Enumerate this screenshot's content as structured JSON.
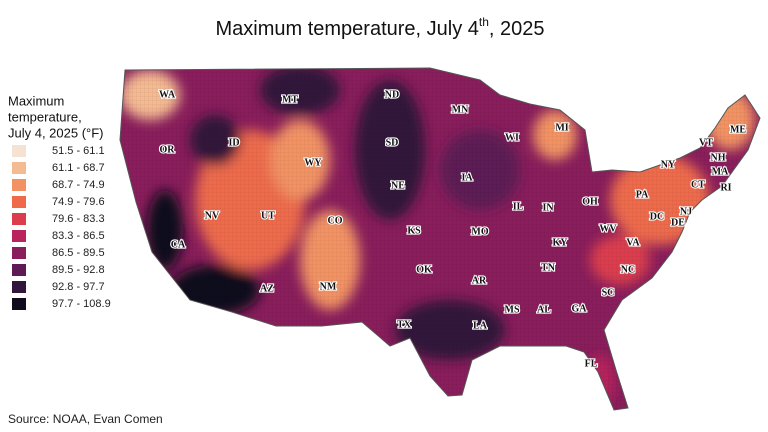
{
  "title": {
    "main": "Maximum temperature, July 4",
    "sup": "th",
    "rest": ", 2025"
  },
  "legend": {
    "title": [
      "Maximum",
      "temperature,",
      "July 4, 2025 (°F)"
    ],
    "items": [
      {
        "label": "51.5 - 61.1",
        "color": "#f6e2d2"
      },
      {
        "label": "61.1 - 68.7",
        "color": "#f4ba92"
      },
      {
        "label": "68.7 - 74.9",
        "color": "#f29263"
      },
      {
        "label": "74.9 - 79.6",
        "color": "#ee6a4b"
      },
      {
        "label": "79.6 - 83.3",
        "color": "#dc3d4d"
      },
      {
        "label": "83.3 - 86.5",
        "color": "#b8245b"
      },
      {
        "label": "86.5 - 89.5",
        "color": "#8a1d5c"
      },
      {
        "label": "89.5 - 92.8",
        "color": "#5d1a55"
      },
      {
        "label": "92.8 - 97.7",
        "color": "#33163b"
      },
      {
        "label": "97.7 - 108.9",
        "color": "#110c1d"
      }
    ]
  },
  "states": [
    "WA",
    "MT",
    "ND",
    "MN",
    "WI",
    "MI",
    "ME",
    "VT",
    "NH",
    "MA",
    "NY",
    "CT",
    "RI",
    "PA",
    "NJ",
    "DE",
    "DC",
    "OH",
    "IN",
    "IL",
    "IA",
    "SD",
    "NE",
    "WY",
    "ID",
    "OR",
    "NV",
    "UT",
    "CO",
    "KS",
    "MO",
    "KY",
    "WV",
    "VA",
    "NC",
    "TN",
    "SC",
    "GA",
    "AL",
    "MS",
    "AR",
    "LA",
    "OK",
    "TX",
    "NM",
    "AZ",
    "CA",
    "FL"
  ],
  "source": "Source: NOAA, Evan Comen"
}
